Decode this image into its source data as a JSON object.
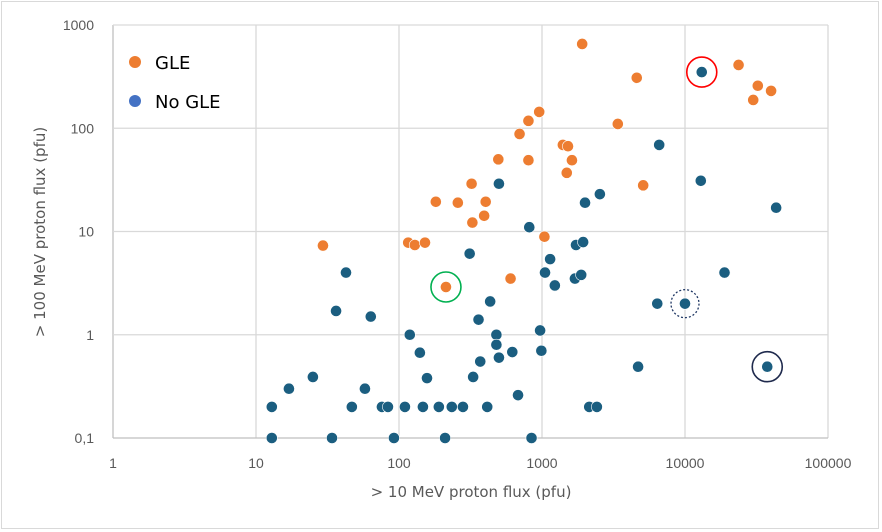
{
  "chart_data": {
    "type": "scatter",
    "title": "",
    "xlabel": "> 10 MeV proton flux (pfu)",
    "ylabel": "> 100 MeV proton flux (pfu)",
    "xscale": "log",
    "yscale": "log",
    "xlim": [
      1,
      100000
    ],
    "ylim": [
      0.1,
      1000
    ],
    "xticks": [
      "1",
      "10",
      "100",
      "1000",
      "10000",
      "100000"
    ],
    "xtick_values": [
      1,
      10,
      100,
      1000,
      10000,
      100000
    ],
    "yticks": [
      "0,1",
      "1",
      "10",
      "100",
      "1000"
    ],
    "ytick_values": [
      0.1,
      1,
      10,
      100,
      1000
    ],
    "grid": true,
    "legend_position": "top-left",
    "series": [
      {
        "name": "GLE",
        "color": "#ED7D31",
        "legend_color": "#ED7D31",
        "points": [
          [
            29.4,
            7.3
          ],
          [
            116,
            7.8
          ],
          [
            129,
            7.4
          ],
          [
            152,
            7.8
          ],
          [
            213,
            2.9
          ],
          [
            181,
            19.4
          ],
          [
            258,
            19
          ],
          [
            322,
            29
          ],
          [
            326,
            12.2
          ],
          [
            394,
            14.2
          ],
          [
            404,
            19.4
          ],
          [
            495,
            50
          ],
          [
            603,
            3.5
          ],
          [
            697,
            88
          ],
          [
            804,
            118
          ],
          [
            804,
            49
          ],
          [
            956,
            144
          ],
          [
            1040,
            8.9
          ],
          [
            1400,
            69
          ],
          [
            1520,
            67
          ],
          [
            1490,
            37
          ],
          [
            1620,
            49
          ],
          [
            1910,
            655
          ],
          [
            3390,
            110
          ],
          [
            4600,
            308
          ],
          [
            5100,
            28
          ],
          [
            23700,
            410
          ],
          [
            30000,
            188
          ],
          [
            32300,
            258
          ],
          [
            40000,
            230
          ]
        ]
      },
      {
        "name": "No GLE",
        "color": "#1B5E80",
        "legend_color": "#4472C4",
        "points": [
          [
            12.9,
            0.2
          ],
          [
            12.9,
            0.1
          ],
          [
            17.0,
            0.3
          ],
          [
            25.0,
            0.39
          ],
          [
            34.0,
            0.1
          ],
          [
            36.3,
            1.7
          ],
          [
            42.6,
            4.0
          ],
          [
            46.8,
            0.2
          ],
          [
            57.8,
            0.3
          ],
          [
            63.5,
            1.5
          ],
          [
            76.0,
            0.2
          ],
          [
            83.7,
            0.2
          ],
          [
            92.2,
            0.1
          ],
          [
            110,
            0.2
          ],
          [
            119,
            1.0
          ],
          [
            140,
            0.67
          ],
          [
            147,
            0.2
          ],
          [
            157,
            0.38
          ],
          [
            190,
            0.2
          ],
          [
            210,
            0.1
          ],
          [
            234,
            0.2
          ],
          [
            280,
            0.2
          ],
          [
            312,
            6.1
          ],
          [
            330,
            0.39
          ],
          [
            360,
            1.4
          ],
          [
            370,
            0.55
          ],
          [
            414,
            0.2
          ],
          [
            434,
            2.1
          ],
          [
            480,
            1.0
          ],
          [
            480,
            0.8
          ],
          [
            500,
            0.6
          ],
          [
            500,
            29
          ],
          [
            620,
            0.68
          ],
          [
            680,
            0.26
          ],
          [
            815,
            11
          ],
          [
            845,
            0.1
          ],
          [
            970,
            1.1
          ],
          [
            990,
            0.7
          ],
          [
            1050,
            4.0
          ],
          [
            1140,
            5.4
          ],
          [
            1230,
            3.0
          ],
          [
            1700,
            3.5
          ],
          [
            1730,
            7.4
          ],
          [
            1880,
            3.8
          ],
          [
            1940,
            7.9
          ],
          [
            2000,
            19
          ],
          [
            2140,
            0.2
          ],
          [
            2420,
            0.2
          ],
          [
            2540,
            23
          ],
          [
            4700,
            0.49
          ],
          [
            6400,
            2.0
          ],
          [
            6600,
            69
          ],
          [
            10000,
            2.0
          ],
          [
            12900,
            31
          ],
          [
            13100,
            350
          ],
          [
            18900,
            4.0
          ],
          [
            37600,
            0.49
          ],
          [
            43400,
            17
          ]
        ]
      }
    ],
    "annotations": [
      {
        "type": "circle",
        "style": "solid",
        "color": "#FF0000",
        "around": [
          13100,
          350
        ]
      },
      {
        "type": "circle",
        "style": "solid",
        "color": "#00B050",
        "around": [
          213,
          2.9
        ]
      },
      {
        "type": "circle",
        "style": "dashed",
        "color": "#203864",
        "around": [
          10000,
          2.0
        ]
      },
      {
        "type": "circle",
        "style": "solid",
        "color": "#1F2A4D",
        "around": [
          37600,
          0.49
        ]
      }
    ],
    "legend": [
      {
        "label": "GLE",
        "color": "#ED7D31"
      },
      {
        "label": "No GLE",
        "color": "#4472C4"
      }
    ]
  },
  "colors": {
    "grid": "#D9D9D9",
    "axis_text": "#595959",
    "border": "#D9D9D9"
  }
}
